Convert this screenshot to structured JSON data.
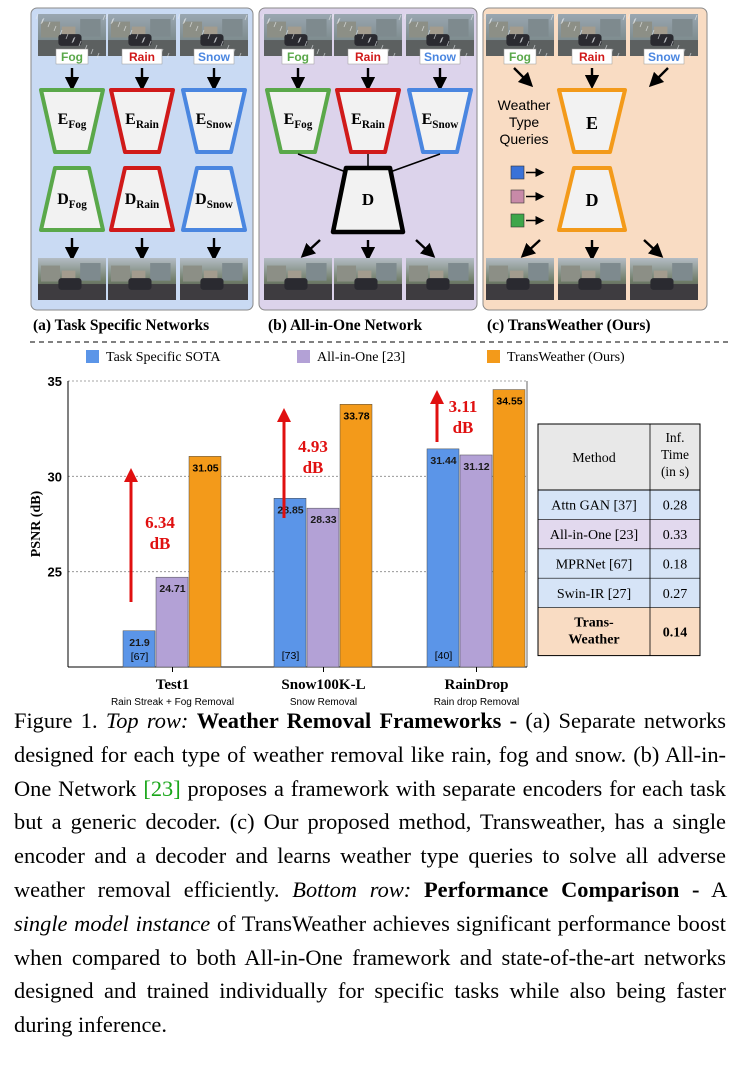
{
  "top_row": {
    "panels": [
      {
        "caption": "(a)  Task Specific Networks",
        "inputs": [
          "Fog",
          "Rain",
          "Snow"
        ],
        "encoders": [
          {
            "main": "E",
            "sub": "Fog"
          },
          {
            "main": "E",
            "sub": "Rain"
          },
          {
            "main": "E",
            "sub": "Snow"
          }
        ],
        "decoders": [
          {
            "main": "D",
            "sub": "Fog"
          },
          {
            "main": "D",
            "sub": "Rain"
          },
          {
            "main": "D",
            "sub": "Snow"
          }
        ]
      },
      {
        "caption": "(b) All-in-One Network",
        "inputs": [
          "Fog",
          "Rain",
          "Snow"
        ],
        "encoders": [
          {
            "main": "E",
            "sub": "Fog"
          },
          {
            "main": "E",
            "sub": "Rain"
          },
          {
            "main": "E",
            "sub": "Snow"
          }
        ],
        "decoder": "D"
      },
      {
        "caption": "(c) TransWeather (Ours)",
        "inputs": [
          "Fog",
          "Rain",
          "Snow"
        ],
        "encoder": "E",
        "decoder": "D",
        "queries_label": [
          "Weather",
          "Type",
          "Queries"
        ]
      }
    ],
    "colors": {
      "panel_a_bg": "#c9daf3",
      "panel_b_bg": "#dcd3eb",
      "panel_c_bg": "#f9dcc3",
      "fog": "#5aa84a",
      "rain": "#d01a1a",
      "snow": "#4a86e0",
      "generic": "#000000",
      "ours": "#f39a1a",
      "query_blue": "#3a72d8",
      "query_pink": "#c88aa8",
      "query_green": "#3ea64a"
    }
  },
  "chart_data": {
    "type": "bar",
    "ylabel": "PSNR (dB)",
    "ylim": [
      20,
      35
    ],
    "yticks": [
      25,
      30,
      35
    ],
    "grid": true,
    "legend": [
      "Task Specific SOTA",
      "All-in-One [23]",
      "TransWeather (Ours)"
    ],
    "legend_position": "top",
    "categories": [
      "Test1",
      "Snow100K-L",
      "RainDrop"
    ],
    "category_sublabels": [
      "Rain Streak + Fog Removal",
      "Snow Removal",
      "Rain drop Removal"
    ],
    "series": [
      {
        "name": "Task Specific SOTA",
        "color": "#5b95e8",
        "values": [
          21.9,
          28.85,
          31.44
        ],
        "refs": [
          "[67]",
          "[73]",
          "[40]"
        ],
        "labels": [
          "21.9",
          "28.85",
          "31.44"
        ]
      },
      {
        "name": "All-in-One [23]",
        "color": "#b3a1d6",
        "values": [
          24.71,
          28.33,
          31.12
        ],
        "labels": [
          "24.71",
          "28.33",
          "31.12"
        ]
      },
      {
        "name": "TransWeather (Ours)",
        "color": "#f39a1a",
        "values": [
          31.05,
          33.78,
          34.55
        ],
        "labels": [
          "31.05",
          "33.78",
          "34.55"
        ]
      }
    ],
    "annotations": [
      {
        "category": "Test1",
        "value": "6.34",
        "unit": "dB"
      },
      {
        "category": "Snow100K-L",
        "value": "4.93",
        "unit": "dB"
      },
      {
        "category": "RainDrop",
        "value": "3.11",
        "unit": "dB"
      }
    ],
    "annotation_color": "#e01010"
  },
  "table": {
    "headers": [
      "Method",
      "Inf. Time (in s)"
    ],
    "header_time_lines": [
      "Inf.",
      "Time",
      "(in s)"
    ],
    "rows": [
      {
        "method": "Attn GAN [37]",
        "time": "0.28",
        "color": "#d6e4f7"
      },
      {
        "method": "All-in-One [23]",
        "time": "0.33",
        "color": "#e2d9ee"
      },
      {
        "method": "MPRNet [67]",
        "time": "0.18",
        "color": "#d6e4f7"
      },
      {
        "method": "Swin-IR [27]",
        "time": "0.27",
        "color": "#d6e4f7"
      },
      {
        "method": "Trans-Weather",
        "method_lines": [
          "Trans-",
          "Weather"
        ],
        "time": "0.14",
        "color": "#f9dcc3",
        "bold": true
      }
    ]
  },
  "caption": {
    "label": "Figure 1.",
    "top_row_label": "Top row:",
    "top_row_title": "Weather Removal Frameworks -",
    "top_row_text_1": "(a) Separate networks designed for each type of weather removal like rain, fog and snow. (b) All-in-One Network",
    "citation": "[23]",
    "top_row_text_2": "proposes a framework with separate encoders for each task but a generic decoder. (c) Our proposed method, Transweather, has a single encoder and a decoder and learns weather type queries to solve all adverse weather removal efficiently.",
    "bottom_row_label": "Bottom row:",
    "bottom_row_title": "Performance Comparison -",
    "bottom_row_text_1": "A",
    "single_model": "single model instance",
    "bottom_row_text_2": "of TransWeather achieves significant performance boost when compared to both All-in-One framework and state-of-the-art networks designed and trained individually for specific tasks while also being faster during inference."
  }
}
